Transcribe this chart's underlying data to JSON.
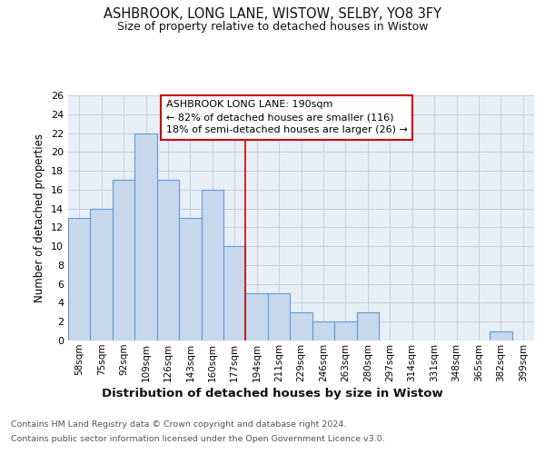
{
  "title1": "ASHBROOK, LONG LANE, WISTOW, SELBY, YO8 3FY",
  "title2": "Size of property relative to detached houses in Wistow",
  "xlabel": "Distribution of detached houses by size in Wistow",
  "ylabel": "Number of detached properties",
  "footnote1": "Contains HM Land Registry data © Crown copyright and database right 2024.",
  "footnote2": "Contains public sector information licensed under the Open Government Licence v3.0.",
  "categories": [
    "58sqm",
    "75sqm",
    "92sqm",
    "109sqm",
    "126sqm",
    "143sqm",
    "160sqm",
    "177sqm",
    "194sqm",
    "211sqm",
    "229sqm",
    "246sqm",
    "263sqm",
    "280sqm",
    "297sqm",
    "314sqm",
    "331sqm",
    "348sqm",
    "365sqm",
    "382sqm",
    "399sqm"
  ],
  "values": [
    13,
    14,
    17,
    22,
    17,
    13,
    16,
    10,
    5,
    5,
    3,
    2,
    2,
    3,
    0,
    0,
    0,
    0,
    0,
    1,
    0
  ],
  "bar_color": "#c8d8ec",
  "bar_edge_color": "#5b9bd5",
  "grid_color": "#c8d0da",
  "background_color": "#e8eef5",
  "property_line_label": "ASHBROOK LONG LANE: 190sqm",
  "annotation_line1": "← 82% of detached houses are smaller (116)",
  "annotation_line2": "18% of semi-detached houses are larger (26) →",
  "annotation_box_color": "#ffffff",
  "annotation_box_edge": "#cc0000",
  "vline_color": "#cc0000",
  "ylim": [
    0,
    26
  ],
  "yticks": [
    0,
    2,
    4,
    6,
    8,
    10,
    12,
    14,
    16,
    18,
    20,
    22,
    24,
    26
  ],
  "prop_bar_index": 8,
  "title1_fontsize": 10.5,
  "title2_fontsize": 9,
  "footnote_fontsize": 6.8,
  "xlabel_fontsize": 9.5,
  "ylabel_fontsize": 8.5
}
